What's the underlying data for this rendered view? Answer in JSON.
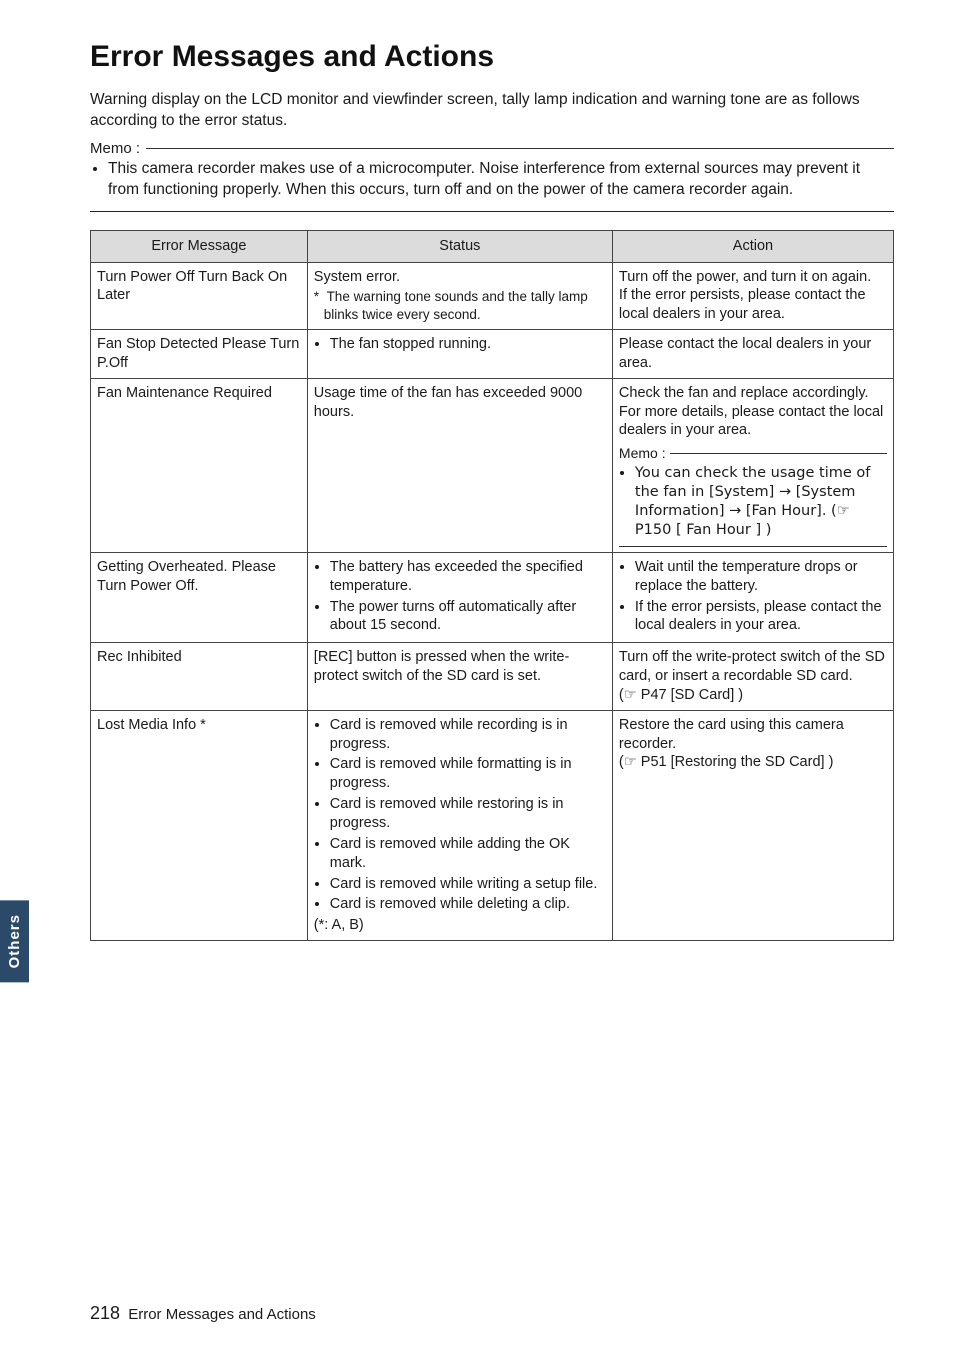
{
  "sideTab": "Others",
  "title": "Error Messages and Actions",
  "intro": "Warning display on the LCD monitor and viewfinder screen, tally lamp indication and warning tone are as follows according to the error status.",
  "memoLabel": "Memo :",
  "memoBullets": [
    "This camera recorder makes use of a microcomputer. Noise interference from external sources may prevent it from functioning properly. When this occurs, turn off and on the power of the camera recorder again."
  ],
  "table": {
    "headers": [
      "Error Message",
      "Status",
      "Action"
    ],
    "rows": [
      {
        "msg": "Turn Power Off Turn Back On Later",
        "status": {
          "lead": "System error.",
          "starNote": "The warning tone sounds and the tally lamp blinks twice every second."
        },
        "action": {
          "text": "Turn off the power, and turn it on again.\nIf the error persists, please contact the local dealers in your area."
        }
      },
      {
        "msg": "Fan Stop Detected Please Turn P.Off",
        "status": {
          "bullets": [
            "The fan stopped running."
          ]
        },
        "action": {
          "text": "Please contact the local dealers in your area."
        }
      },
      {
        "msg": "Fan Maintenance Required",
        "status": {
          "text": "Usage time of the fan has exceeded 9000 hours."
        },
        "action": {
          "text": "Check the fan and replace accordingly. For more details, please contact the local dealers in your area.",
          "memoLabel": "Memo :",
          "memoBullets": [
            "You can check the usage time of the fan in [System] → [System Information] → [Fan Hour]. (☞ P150 [ Fan Hour ] )"
          ]
        }
      },
      {
        "msg": "Getting Overheated. Please Turn Power Off.",
        "status": {
          "bullets": [
            "The battery has exceeded the specified temperature.",
            "The power turns off automatically after about 15 second."
          ]
        },
        "action": {
          "bullets": [
            "Wait until the temperature drops or replace the battery.",
            "If the error persists, please contact the local dealers in your area."
          ]
        }
      },
      {
        "msg": "Rec Inhibited",
        "status": {
          "text": "[REC] button is pressed when the write-protect switch of the SD card is set."
        },
        "action": {
          "text": "Turn off the write-protect switch of the SD card, or insert a recordable SD card.\n(☞ P47 [SD Card] )"
        }
      },
      {
        "msg": "Lost Media Info *",
        "status": {
          "bullets": [
            "Card is removed while recording is in progress.",
            "Card is removed while formatting is in progress.",
            "Card is removed while restoring is in progress.",
            "Card is removed while adding the OK mark.",
            "Card is removed while writing a setup file.",
            "Card is removed while deleting a clip."
          ],
          "tail": "(*: A, B)"
        },
        "action": {
          "text": "Restore the card using this camera recorder.\n(☞ P51 [Restoring the SD Card] )"
        }
      }
    ]
  },
  "footer": {
    "page": "218",
    "label": "Error Messages and Actions"
  }
}
